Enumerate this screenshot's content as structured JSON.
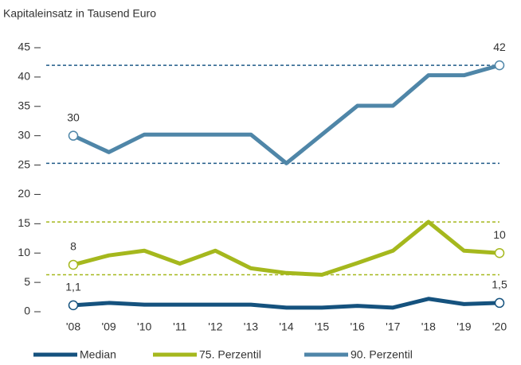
{
  "chart_data": {
    "type": "line",
    "title": "Kapitaleinsatz in Tausend Euro",
    "categories": [
      "'08",
      "'09",
      "'10",
      "'11",
      "'12",
      "'13",
      "'14",
      "'15",
      "'16",
      "'17",
      "'18",
      "'19",
      "'20"
    ],
    "series": [
      {
        "name": "Median",
        "color": "#15527e",
        "values": [
          1.1,
          1.5,
          1.2,
          1.2,
          1.2,
          1.2,
          0.7,
          0.7,
          1.0,
          0.7,
          2.2,
          1.3,
          1.5
        ],
        "value_labels": [
          "1,1",
          null,
          null,
          null,
          null,
          null,
          null,
          null,
          null,
          null,
          null,
          null,
          "1,5"
        ]
      },
      {
        "name": "75. Perzentil",
        "color": "#a5b81d",
        "values": [
          8,
          9.6,
          10.4,
          8.2,
          10.4,
          7.4,
          6.6,
          6.3,
          8.3,
          10.4,
          15.3,
          10.4,
          10
        ],
        "value_labels": [
          "8",
          null,
          null,
          null,
          null,
          null,
          null,
          null,
          null,
          null,
          null,
          null,
          "10"
        ]
      },
      {
        "name": "90. Perzentil",
        "color": "#4f86a8",
        "values": [
          30,
          27.2,
          30.2,
          30.2,
          30.2,
          30.2,
          25.3,
          30.2,
          35.1,
          35.1,
          40.3,
          40.3,
          42
        ],
        "value_labels": [
          "30",
          null,
          null,
          null,
          null,
          null,
          null,
          null,
          null,
          null,
          null,
          null,
          "42"
        ]
      }
    ],
    "reference_lines": [
      {
        "value": 42,
        "color": "#1f5a87"
      },
      {
        "value": 25.3,
        "color": "#1f5a87"
      },
      {
        "value": 15.3,
        "color": "#a5b81d"
      },
      {
        "value": 6.3,
        "color": "#a5b81d"
      }
    ],
    "ylim": [
      0,
      45
    ],
    "yticks": [
      0,
      5,
      10,
      15,
      20,
      25,
      30,
      35,
      40,
      45
    ],
    "legend": "bottom"
  }
}
